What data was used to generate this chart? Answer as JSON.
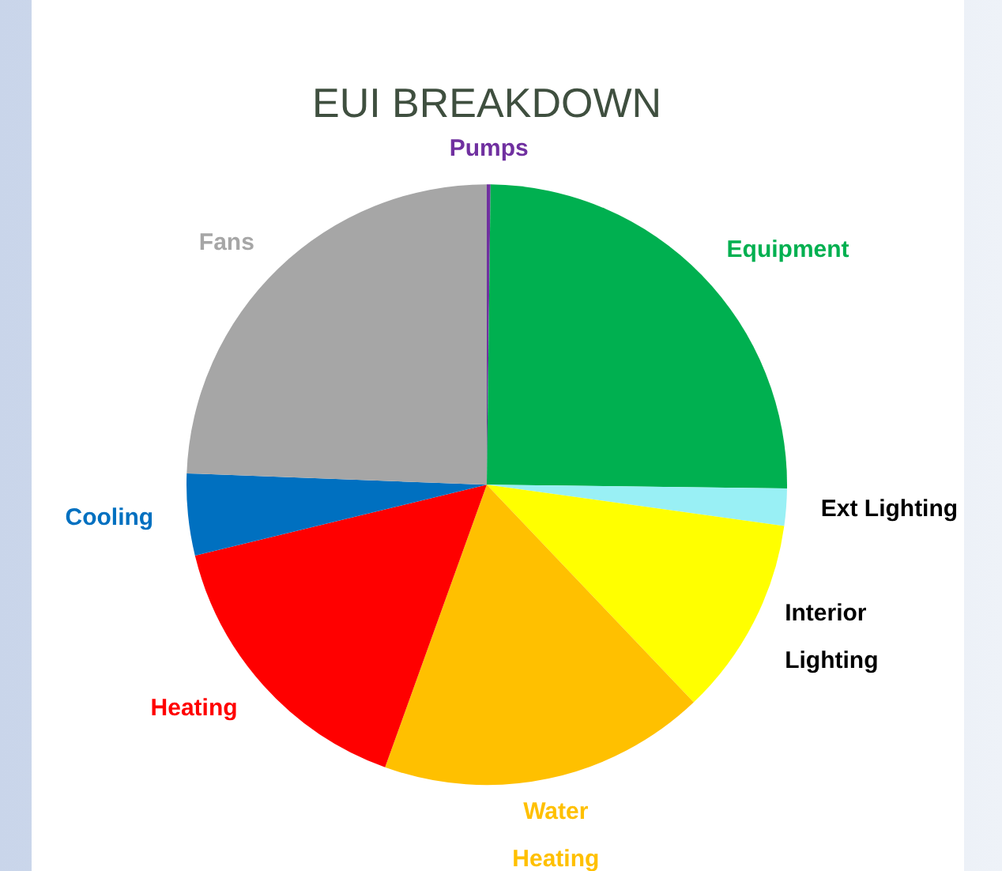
{
  "chart_data": {
    "type": "pie",
    "title": "EUI BREAKDOWN",
    "categories": [
      "Pumps",
      "Equipment",
      "Ext Lighting",
      "Interior Lighting",
      "Water Heating",
      "Heating",
      "Cooling",
      "Fans"
    ],
    "values": [
      0.2,
      25,
      2,
      10.7,
      17.6,
      15.7,
      4.4,
      24.4
    ],
    "colors": [
      "#7030a0",
      "#00b050",
      "#99f0f5",
      "#ffff00",
      "#ffc000",
      "#ff0000",
      "#0070c0",
      "#a6a6a6"
    ],
    "legend": false
  }
}
